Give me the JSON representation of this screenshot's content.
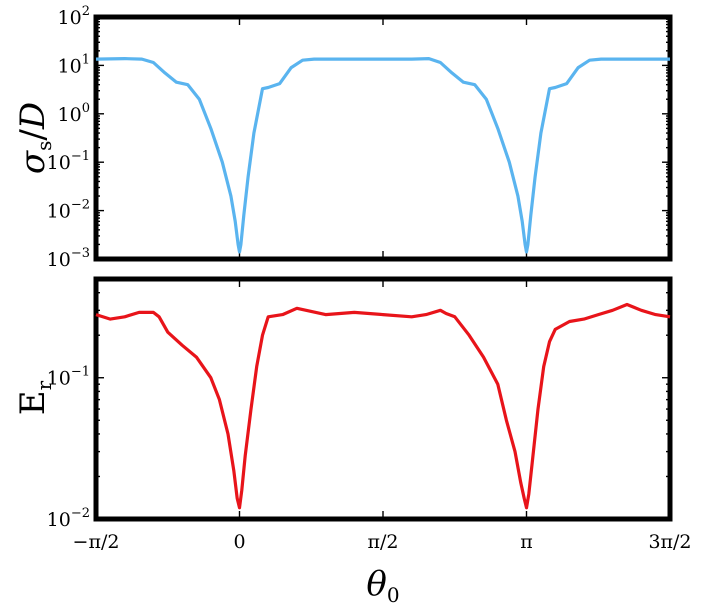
{
  "chart_data": [
    {
      "type": "line",
      "ylabel": "σs/D",
      "yscale": "log",
      "ylim": [
        0.001,
        100
      ],
      "xlim": [
        "-π/2",
        "3π/2"
      ],
      "y_ticks": [
        {
          "base": "10",
          "exp": "2"
        },
        {
          "base": "10",
          "exp": "1"
        },
        {
          "base": "10",
          "exp": "0"
        },
        {
          "base": "10",
          "exp": "−1"
        },
        {
          "base": "10",
          "exp": "−2"
        },
        {
          "base": "10",
          "exp": "−3"
        }
      ],
      "color": "#5ab4ef",
      "grid": false,
      "x_rad_over_pi": [
        -0.5,
        -0.4,
        -0.34,
        -0.3,
        -0.26,
        -0.22,
        -0.18,
        -0.14,
        -0.1,
        -0.06,
        -0.03,
        -0.015,
        -0.005,
        0,
        0.005,
        0.015,
        0.03,
        0.05,
        0.08,
        0.1,
        0.14,
        0.18,
        0.22,
        0.26,
        0.32,
        0.4,
        0.5,
        0.6,
        0.66,
        0.7,
        0.74,
        0.78,
        0.82,
        0.86,
        0.9,
        0.94,
        0.97,
        0.985,
        0.995,
        1,
        1.005,
        1.015,
        1.03,
        1.05,
        1.08,
        1.1,
        1.14,
        1.18,
        1.22,
        1.26,
        1.32,
        1.4,
        1.5
      ],
      "values": [
        13.5,
        13.8,
        13.5,
        11.5,
        7.0,
        4.5,
        4.0,
        2.0,
        0.5,
        0.1,
        0.02,
        0.006,
        0.002,
        0.0014,
        0.002,
        0.008,
        0.05,
        0.4,
        3.3,
        3.5,
        4.2,
        9.0,
        12.8,
        13.5,
        13.5,
        13.5,
        13.5,
        13.5,
        13.8,
        11.5,
        7.0,
        4.5,
        4.0,
        2.0,
        0.5,
        0.1,
        0.02,
        0.006,
        0.002,
        0.0014,
        0.002,
        0.008,
        0.05,
        0.4,
        3.3,
        3.5,
        4.2,
        9.0,
        12.8,
        13.5,
        13.5,
        13.5,
        13.5
      ]
    },
    {
      "type": "line",
      "ylabel": "Er",
      "yscale": "log",
      "ylim": [
        0.01,
        0.5
      ],
      "y_ticks": [
        {
          "base": "10",
          "exp": "−1",
          "value": 0.1
        },
        {
          "base": "10",
          "exp": "−2",
          "value": 0.01
        }
      ],
      "xlabel": "θ0",
      "x_tick_labels": [
        "−π/2",
        "0",
        "π/2",
        "π",
        "3π/2"
      ],
      "color": "#e8141a",
      "grid": false,
      "x_rad_over_pi": [
        -0.5,
        -0.45,
        -0.4,
        -0.35,
        -0.3,
        -0.28,
        -0.25,
        -0.2,
        -0.15,
        -0.1,
        -0.07,
        -0.04,
        -0.02,
        -0.008,
        0,
        0.008,
        0.02,
        0.04,
        0.06,
        0.08,
        0.1,
        0.15,
        0.2,
        0.3,
        0.4,
        0.5,
        0.6,
        0.65,
        0.7,
        0.72,
        0.75,
        0.8,
        0.85,
        0.9,
        0.93,
        0.96,
        0.98,
        0.992,
        1,
        1.008,
        1.02,
        1.04,
        1.06,
        1.08,
        1.1,
        1.15,
        1.2,
        1.25,
        1.3,
        1.35,
        1.4,
        1.45,
        1.5
      ],
      "values": [
        0.28,
        0.26,
        0.27,
        0.29,
        0.29,
        0.27,
        0.21,
        0.17,
        0.14,
        0.1,
        0.07,
        0.04,
        0.022,
        0.014,
        0.012,
        0.016,
        0.028,
        0.06,
        0.12,
        0.2,
        0.27,
        0.28,
        0.31,
        0.28,
        0.29,
        0.28,
        0.27,
        0.28,
        0.3,
        0.285,
        0.27,
        0.2,
        0.14,
        0.09,
        0.05,
        0.03,
        0.018,
        0.014,
        0.012,
        0.015,
        0.025,
        0.06,
        0.12,
        0.18,
        0.22,
        0.25,
        0.26,
        0.28,
        0.3,
        0.33,
        0.3,
        0.28,
        0.27
      ]
    }
  ]
}
